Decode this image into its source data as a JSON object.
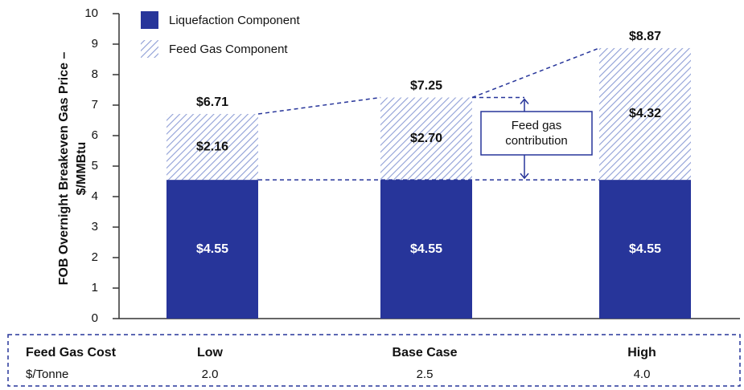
{
  "chart_data": {
    "type": "stacked_bar",
    "ylabel": [
      "FOB Overnight Breakeven Gas Price –",
      "$/MMBtu"
    ],
    "categories": [
      "Low",
      "Base Case",
      "High"
    ],
    "series": [
      {
        "name": "Liquefaction Component",
        "color": "#27359a",
        "values": [
          4.55,
          4.55,
          4.55
        ],
        "value_labels": [
          "$4.55",
          "$4.55",
          "$4.55"
        ]
      },
      {
        "name": "Feed Gas Component",
        "color": "#8e9ed6",
        "hatch": true,
        "values": [
          2.16,
          2.7,
          4.32
        ],
        "value_labels": [
          "$2.16",
          "$2.70",
          "$4.32"
        ]
      }
    ],
    "totals": [
      6.71,
      7.25,
      8.87
    ],
    "total_labels": [
      "$6.71",
      "$7.25",
      "$8.87"
    ],
    "annotation": [
      "Feed gas",
      "contribution"
    ],
    "ylim": [
      0,
      10
    ],
    "yticks": [
      0,
      1,
      2,
      3,
      4,
      5,
      6,
      7,
      8,
      9,
      10
    ],
    "x_table": {
      "row_labels": [
        "Feed Gas Cost",
        "$/Tonne"
      ],
      "costs": [
        "2.0",
        "2.5",
        "4.0"
      ]
    }
  }
}
